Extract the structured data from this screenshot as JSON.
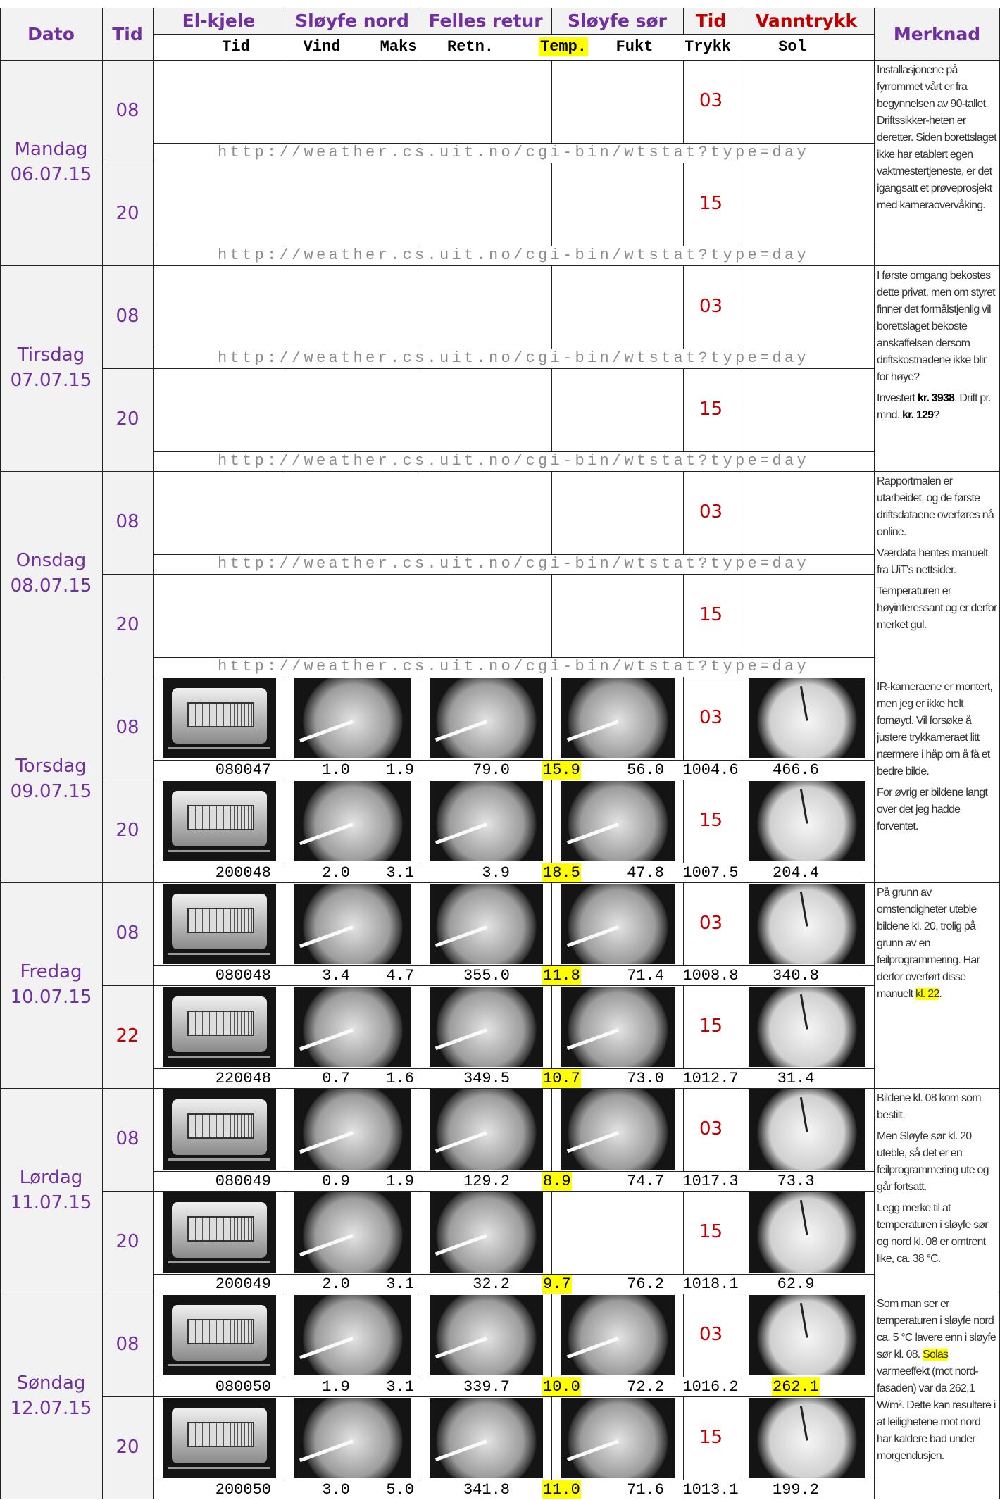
{
  "header": {
    "columns": [
      "Dato",
      "Tid",
      "El-kjele",
      "Sløyfe nord",
      "Felles retur",
      "Sløyfe sør",
      "Tid",
      "Vanntrykk",
      "Merknad"
    ],
    "subheaders": [
      "Tid",
      "Vind",
      "Maks",
      "Retn.",
      "Temp.",
      "Fukt",
      "Trykk",
      "Sol"
    ],
    "highlight": [
      4
    ]
  },
  "days": [
    {
      "name": "Mandag",
      "date": "06.07.15",
      "rows": [
        {
          "tid": "08",
          "trykk_tid": "03",
          "url": "http://weather.cs.uit.no/cgi-bin/wtstat?type=day"
        },
        {
          "tid": "20",
          "trykk_tid": "15",
          "url": "http://weather.cs.uit.no/cgi-bin/wtstat?type=day"
        }
      ],
      "note": [
        [
          {
            "text": "Installasjonene på fyrrommet vårt er fra begynnelsen av 90-tallet. Driftssikker-heten er deretter. Siden borettslaget ikke har etablert egen vaktmestertjeneste, er det igangsatt et prøveprosjekt med kameraovervåking."
          }
        ]
      ]
    },
    {
      "name": "Tirsdag",
      "date": "07.07.15",
      "rows": [
        {
          "tid": "08",
          "trykk_tid": "03",
          "url": "http://weather.cs.uit.no/cgi-bin/wtstat?type=day"
        },
        {
          "tid": "20",
          "trykk_tid": "15",
          "url": "http://weather.cs.uit.no/cgi-bin/wtstat?type=day"
        }
      ],
      "note": [
        [
          {
            "text": "I første omgang bekostes dette privat, men om styret finner det formålstjenlig vil borettslaget bekoste anskaffelsen dersom driftskostnadene ikke blir for høye?"
          }
        ],
        [
          {
            "text": "Investert "
          },
          {
            "text": "kr. 3938",
            "style": "bold"
          },
          {
            "text": ". Drift pr. mnd. "
          },
          {
            "text": "kr. 129",
            "style": "bold"
          },
          {
            "text": "?"
          }
        ]
      ]
    },
    {
      "name": "Onsdag",
      "date": "08.07.15",
      "rows": [
        {
          "tid": "08",
          "trykk_tid": "03",
          "url": "http://weather.cs.uit.no/cgi-bin/wtstat?type=day"
        },
        {
          "tid": "20",
          "trykk_tid": "15",
          "url": "http://weather.cs.uit.no/cgi-bin/wtstat?type=day"
        }
      ],
      "note": [
        [
          {
            "text": "Rapportmalen er utarbeidet, og de første driftsdataene overføres nå online."
          }
        ],
        [
          {
            "text": "Værdata hentes manuelt fra UiT's nettsider."
          }
        ],
        [
          {
            "text": "Temperaturen er høyinteressant og er derfor merket gul."
          }
        ]
      ]
    },
    {
      "name": "Torsdag",
      "date": "09.07.15",
      "rows": [
        {
          "tid": "08",
          "trykk_tid": "03",
          "photos": [
            true,
            true,
            true,
            true,
            true
          ],
          "values": [
            "080047",
            "1.0",
            "1.9",
            "79.0",
            "15.9",
            "56.0",
            "1004.6",
            "466.6"
          ]
        },
        {
          "tid": "20",
          "trykk_tid": "15",
          "photos": [
            true,
            true,
            true,
            true,
            true
          ],
          "values": [
            "200048",
            "2.0",
            "3.1",
            "3.9",
            "18.5",
            "47.8",
            "1007.5",
            "204.4"
          ]
        }
      ],
      "note": [
        [
          {
            "text": "IR-kameraene er montert, men jeg er ikke helt fornøyd. Vil forsøke å justere trykkameraet litt nærmere i håp om å få et bedre bilde."
          }
        ],
        [
          {
            "text": "For øvrig er bildene langt over det jeg hadde forventet."
          }
        ]
      ]
    },
    {
      "name": "Fredag",
      "date": "10.07.15",
      "rows": [
        {
          "tid": "08",
          "trykk_tid": "03",
          "photos": [
            true,
            true,
            true,
            true,
            true
          ],
          "values": [
            "080048",
            "3.4",
            "4.7",
            "355.0",
            "11.8",
            "71.4",
            "1008.8",
            "340.8"
          ]
        },
        {
          "tid": "22",
          "tid_color": "#c00000",
          "trykk_tid": "15",
          "photos": [
            true,
            true,
            true,
            true,
            true
          ],
          "values": [
            "220048",
            "0.7",
            "1.6",
            "349.5",
            "10.7",
            "73.0",
            "1012.7",
            "31.4"
          ]
        }
      ],
      "note": [
        [
          {
            "text": "På grunn av omstendigheter uteble bildene kl. 20, trolig på grunn av en feilprogrammering. Har derfor overført disse manuelt "
          },
          {
            "text": "kl. 22",
            "style": "highlight"
          },
          {
            "text": "."
          }
        ]
      ]
    },
    {
      "name": "Lørdag",
      "date": "11.07.15",
      "rows": [
        {
          "tid": "08",
          "trykk_tid": "03",
          "photos": [
            true,
            true,
            true,
            true,
            true
          ],
          "values": [
            "080049",
            "0.9",
            "1.9",
            "129.2",
            "8.9",
            "74.7",
            "1017.3",
            "73.3"
          ]
        },
        {
          "tid": "20",
          "trykk_tid": "15",
          "photos": [
            true,
            true,
            true,
            false,
            true
          ],
          "values": [
            "200049",
            "2.0",
            "3.1",
            "32.2",
            "9.7",
            "76.2",
            "1018.1",
            "62.9"
          ]
        }
      ],
      "note": [
        [
          {
            "text": "Bildene kl. 08 kom som bestilt."
          }
        ],
        [
          {
            "text": "Men Sløyfe sør kl. 20 uteble, så det er en feilprogrammering ute og går fortsatt."
          }
        ],
        [
          {
            "text": "Legg merke til at temperaturen i sløyfe sør og nord kl. 08 er omtrent like, ca. 38 °C."
          }
        ]
      ]
    },
    {
      "name": "Søndag",
      "date": "12.07.15",
      "rows": [
        {
          "tid": "08",
          "trykk_tid": "03",
          "photos": [
            true,
            true,
            true,
            true,
            true
          ],
          "values": [
            "080050",
            "1.9",
            "3.1",
            "339.7",
            "10.0",
            "72.2",
            "1016.2",
            "262.1"
          ],
          "highlight": [
            7
          ]
        },
        {
          "tid": "20",
          "trykk_tid": "15",
          "photos": [
            true,
            true,
            true,
            true,
            true
          ],
          "values": [
            "200050",
            "3.0",
            "5.0",
            "341.8",
            "11.0",
            "71.6",
            "1013.1",
            "199.2"
          ]
        }
      ],
      "note": [
        [
          {
            "text": "Som man ser er temperaturen i sløyfe nord ca. 5 °C lavere enn i sløyfe sør kl. 08. "
          },
          {
            "text": "Solas",
            "style": "highlight"
          },
          {
            "text": " varmeeffekt (mot nord-fasaden) var da 262,1 W/m². Dette kan resultere i at leilighetene mot nord har kaldere bad under morgendusjen."
          }
        ]
      ]
    }
  ]
}
